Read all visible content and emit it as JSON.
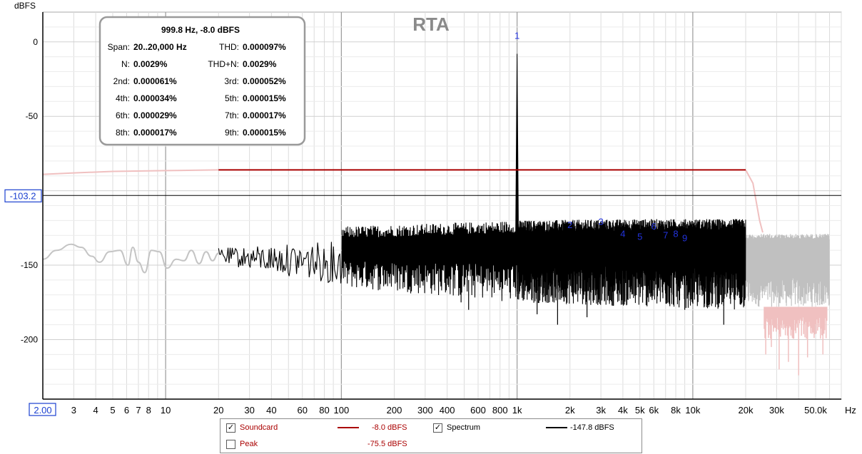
{
  "chart_data": {
    "type": "line",
    "title": "RTA",
    "y_unit": "dBFS",
    "x_unit": "Hz",
    "x_scale": "log",
    "xlim": [
      2.0,
      70000
    ],
    "ylim": [
      -240,
      20
    ],
    "x_tick_labels": [
      {
        "v": 2,
        "t": "2.00"
      },
      {
        "v": 3,
        "t": "3"
      },
      {
        "v": 4,
        "t": "4"
      },
      {
        "v": 5,
        "t": "5"
      },
      {
        "v": 6,
        "t": "6"
      },
      {
        "v": 7,
        "t": "7"
      },
      {
        "v": 8,
        "t": "8"
      },
      {
        "v": 10,
        "t": "10"
      },
      {
        "v": 20,
        "t": "20"
      },
      {
        "v": 30,
        "t": "30"
      },
      {
        "v": 40,
        "t": "40"
      },
      {
        "v": 60,
        "t": "60"
      },
      {
        "v": 80,
        "t": "80"
      },
      {
        "v": 100,
        "t": "100"
      },
      {
        "v": 200,
        "t": "200"
      },
      {
        "v": 300,
        "t": "300"
      },
      {
        "v": 400,
        "t": "400"
      },
      {
        "v": 600,
        "t": "600"
      },
      {
        "v": 800,
        "t": "800"
      },
      {
        "v": 1000,
        "t": "1k"
      },
      {
        "v": 2000,
        "t": "2k"
      },
      {
        "v": 3000,
        "t": "3k"
      },
      {
        "v": 4000,
        "t": "4k"
      },
      {
        "v": 5000,
        "t": "5k"
      },
      {
        "v": 6000,
        "t": "6k"
      },
      {
        "v": 8000,
        "t": "8k"
      },
      {
        "v": 10000,
        "t": "10k"
      },
      {
        "v": 20000,
        "t": "20k"
      },
      {
        "v": 30000,
        "t": "30k"
      },
      {
        "v": 50000,
        "t": "50.0k"
      }
    ],
    "y_tick_labels": [
      {
        "v": 0,
        "t": "0"
      },
      {
        "v": -50,
        "t": "-50"
      },
      {
        "v": -150,
        "t": "-150"
      },
      {
        "v": -200,
        "t": "-200"
      }
    ],
    "cursor_level": {
      "value": -103.2,
      "label": "-103.2"
    },
    "series": [
      {
        "name": "Soundcard",
        "color": "#aa0000",
        "faded_color": "#f0c0c0",
        "level": -86,
        "x": [
          2,
          3,
          5,
          10,
          20,
          20000,
          22000,
          24000,
          25000
        ],
        "y": [
          -89,
          -88,
          -87,
          -86.5,
          -86,
          -86,
          -95,
          -120,
          -128
        ]
      },
      {
        "name": "Spectrum",
        "color": "#000000",
        "faded_color": "#c0c0c0",
        "smooth_low": {
          "x": [
            2,
            2.4,
            2.9,
            3.3,
            3.8,
            4.2,
            4.8,
            5.5,
            6.1,
            6.5,
            7.0,
            7.6,
            8.3,
            9.2,
            10.2,
            11.5,
            12.7,
            14.0,
            15.5,
            17.0,
            18.5,
            20
          ],
          "y": [
            -146,
            -140,
            -136,
            -138,
            -144,
            -148,
            -141,
            -140,
            -150,
            -138,
            -148,
            -155,
            -140,
            -141,
            -152,
            -146,
            -147,
            -140,
            -149,
            -141,
            -147,
            -142
          ]
        },
        "noise_band": [
          {
            "x": 20,
            "top": -138,
            "bottom": -150
          },
          {
            "x": 100,
            "top": -132,
            "bottom": -165
          },
          {
            "x": 1000,
            "top": -128,
            "bottom": -175
          },
          {
            "x": 5000,
            "top": -127,
            "bottom": -178
          },
          {
            "x": 20000,
            "top": -127,
            "bottom": -180
          }
        ],
        "spike": {
          "x": 999.8,
          "y": -8.0
        },
        "spike_deep": [
          [
            480,
            -175
          ],
          [
            530,
            -180
          ],
          [
            1300,
            -183
          ],
          [
            1700,
            -190
          ],
          [
            2500,
            -185
          ],
          [
            9000,
            -180
          ],
          [
            15000,
            -190
          ]
        ],
        "faded_band": {
          "x_from": 20000,
          "x_to": 60000,
          "top": -129,
          "bottom": -178
        },
        "faded_deep_red": [
          [
            26000,
            -210
          ],
          [
            28000,
            -205
          ],
          [
            31000,
            -220
          ],
          [
            35000,
            -215
          ],
          [
            40000,
            -224
          ],
          [
            45000,
            -212
          ],
          [
            55000,
            -210
          ]
        ]
      }
    ],
    "harmonic_markers": [
      {
        "label": "1",
        "x": 999.8,
        "y": 2
      },
      {
        "label": "2",
        "x": 2000,
        "y": -125
      },
      {
        "label": "3",
        "x": 3000,
        "y": -123
      },
      {
        "label": "4",
        "x": 4000,
        "y": -131
      },
      {
        "label": "5",
        "x": 5000,
        "y": -133
      },
      {
        "label": "6",
        "x": 6000,
        "y": -126
      },
      {
        "label": "7",
        "x": 7000,
        "y": -132
      },
      {
        "label": "8",
        "x": 8000,
        "y": -131
      },
      {
        "label": "9",
        "x": 9000,
        "y": -134
      }
    ]
  },
  "infobox": {
    "header": "999.8 Hz, -8.0 dBFS",
    "rows": [
      {
        "l1": "Span:",
        "v1": "20..20,000 Hz",
        "l2": "THD:",
        "v2": "0.000097%"
      },
      {
        "l1": "N:",
        "v1": "0.0029%",
        "l2": "THD+N:",
        "v2": "0.0029%"
      },
      {
        "l1": "2nd:",
        "v1": "0.000061%",
        "l2": "3rd:",
        "v2": "0.000052%"
      },
      {
        "l1": "4th:",
        "v1": "0.000034%",
        "l2": "5th:",
        "v2": "0.000015%"
      },
      {
        "l1": "6th:",
        "v1": "0.000029%",
        "l2": "7th:",
        "v2": "0.000017%"
      },
      {
        "l1": "8th:",
        "v1": "0.000017%",
        "l2": "9th:",
        "v2": "0.000015%"
      }
    ]
  },
  "legend": {
    "soundcard": {
      "label": "Soundcard",
      "checked": true,
      "value": "-8.0 dBFS",
      "color": "#aa0000"
    },
    "spectrum": {
      "label": "Spectrum",
      "checked": true,
      "value": "-147.8 dBFS",
      "color": "#000000"
    },
    "peak": {
      "label": "Peak",
      "checked": false,
      "value": "-75.5 dBFS",
      "color": "#aa0000"
    }
  }
}
